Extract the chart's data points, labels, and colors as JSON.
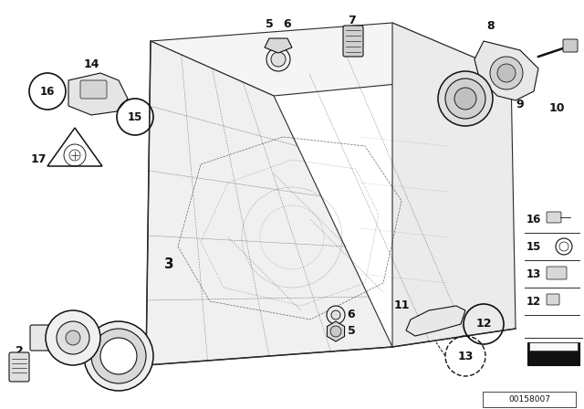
{
  "bg_color": "#ffffff",
  "image_id": "00158007",
  "lw": 0.8,
  "gray": "#2a2a2a",
  "fig_w": 6.4,
  "fig_h": 4.48,
  "dpi": 100
}
